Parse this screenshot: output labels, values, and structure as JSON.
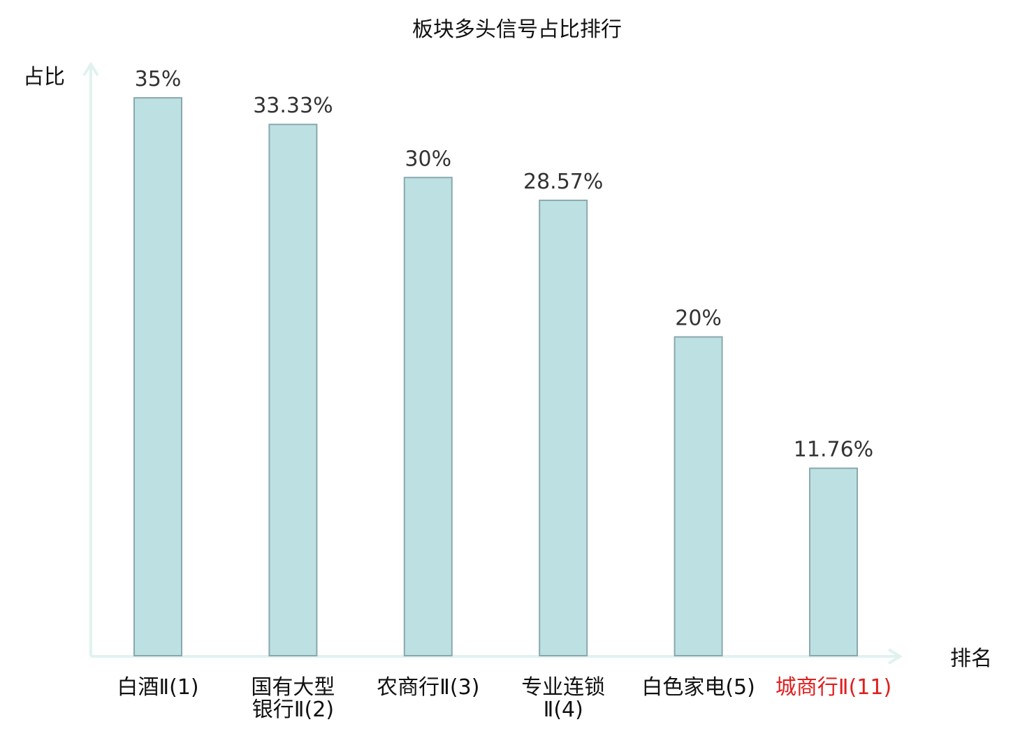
{
  "chart_data": {
    "type": "bar",
    "title": "板块多头信号占比排行",
    "ylabel": "占比",
    "xlabel": "排名",
    "ylim": [
      0,
      40
    ],
    "grid": false,
    "categories": [
      {
        "label": [
          "白酒Ⅱ(1)"
        ],
        "highlight": false
      },
      {
        "label": [
          "国有大型",
          "银行Ⅱ(2)"
        ],
        "highlight": false
      },
      {
        "label": [
          "农商行Ⅱ(3)"
        ],
        "highlight": false
      },
      {
        "label": [
          "专业连锁",
          "Ⅱ(4)"
        ],
        "highlight": false
      },
      {
        "label": [
          "白色家电(5)"
        ],
        "highlight": false
      },
      {
        "label": [
          "城商行Ⅱ(11)"
        ],
        "highlight": true
      }
    ],
    "values": [
      35,
      33.33,
      30,
      28.57,
      20,
      11.76
    ],
    "value_labels": [
      "35%",
      "33.33%",
      "30%",
      "28.57%",
      "20%",
      "11.76%"
    ]
  },
  "colors": {
    "bar_fill": "#bde0e3",
    "bar_stroke": "#8aa8ad",
    "axis": "#e0f2f0",
    "highlight_text": "#e01e1e",
    "normal_text": "#111111",
    "value_text": "#333333"
  }
}
